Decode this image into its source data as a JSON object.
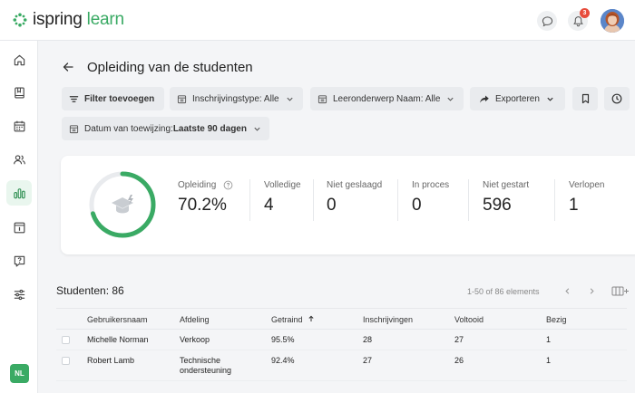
{
  "app": {
    "logo_part1": "ispring",
    "logo_part2": "learn",
    "notification_count": "3",
    "brand_color": "#3aaa64"
  },
  "sidebar": {
    "items": [
      {
        "icon": "home-icon"
      },
      {
        "icon": "book-icon"
      },
      {
        "icon": "calendar-icon"
      },
      {
        "icon": "users-icon"
      },
      {
        "icon": "reports-icon",
        "active": true
      },
      {
        "icon": "info-icon"
      },
      {
        "icon": "help-icon"
      },
      {
        "icon": "settings-icon"
      }
    ],
    "user_initials": "NL"
  },
  "page": {
    "title": "Opleiding van de studenten"
  },
  "filters": {
    "add_filter": "Filter toevoegen",
    "enrollment_type": "Inschrijvingstype: Alle",
    "learning_subject": "Leeronderwerp Naam: Alle",
    "export": "Exporteren",
    "assignment_date_label": "Datum van toewijzing: ",
    "assignment_date_value": "Laatste 90 dagen"
  },
  "stats": {
    "training_label": "Opleiding",
    "training_value": "70.2%",
    "training_fraction": 0.702,
    "complete_label": "Volledige",
    "complete_value": "4",
    "failed_label": "Niet geslaagd",
    "failed_value": "0",
    "in_progress_label": "In proces",
    "in_progress_value": "0",
    "not_started_label": "Niet gestart",
    "not_started_value": "596",
    "expired_label": "Verlopen",
    "expired_value": "1"
  },
  "students": {
    "label": "Studenten: 86",
    "pagination": "1-50 of 86 elements"
  },
  "table": {
    "columns": {
      "username": "Gebruikersnaam",
      "department": "Afdeling",
      "trained": "Getraind",
      "enrollments": "Inschrijvingen",
      "completed": "Voltooid",
      "busy": "Bezig"
    },
    "rows": [
      {
        "username": "Michelle Norman",
        "department": "Verkoop",
        "trained": "95.5%",
        "enrollments": "28",
        "completed": "27",
        "busy": "1"
      },
      {
        "username": "Robert Lamb",
        "department": "Technische ondersteuning",
        "trained": "92.4%",
        "enrollments": "27",
        "completed": "26",
        "busy": "1"
      }
    ]
  }
}
